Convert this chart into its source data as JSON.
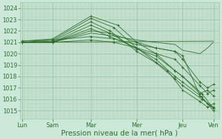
{
  "bg_color": "#cce8d8",
  "grid_color": "#a8c8b0",
  "line_color": "#2d6e2d",
  "marker_color": "#2d6e2d",
  "xlabel": "Pression niveau de la mer( hPa )",
  "xlabel_fontsize": 7.5,
  "tick_fontsize": 6.0,
  "yticks": [
    1015,
    1016,
    1017,
    1018,
    1019,
    1020,
    1021,
    1022,
    1023,
    1024
  ],
  "ylim": [
    1014.3,
    1024.5
  ],
  "xlim": [
    -0.05,
    5.15
  ],
  "xtick_labels": [
    "Lun",
    "Sam",
    "Mar",
    "Mer",
    "Jeu",
    "Ven"
  ],
  "xtick_positions": [
    0.0,
    0.8,
    1.8,
    3.0,
    4.2,
    5.0
  ],
  "vline_positions": [
    0.0,
    0.8,
    1.8,
    3.0,
    4.2,
    5.0
  ],
  "series": [
    {
      "x": [
        0.0,
        0.8,
        1.8,
        2.5,
        3.0,
        3.5,
        4.0,
        4.2,
        4.7,
        5.0
      ],
      "y": [
        1021.1,
        1021.3,
        1023.3,
        1022.5,
        1021.0,
        1020.0,
        1018.5,
        1018.0,
        1016.5,
        1015.2
      ],
      "marker": true
    },
    {
      "x": [
        0.0,
        0.8,
        1.8,
        2.4,
        3.0,
        3.5,
        4.0,
        4.2,
        4.7,
        5.0
      ],
      "y": [
        1021.0,
        1021.2,
        1023.1,
        1022.3,
        1020.5,
        1019.5,
        1018.0,
        1017.5,
        1016.2,
        1015.0
      ],
      "marker": true
    },
    {
      "x": [
        0.0,
        0.8,
        1.8,
        2.3,
        3.0,
        3.5,
        4.0,
        4.2,
        4.7,
        5.0
      ],
      "y": [
        1021.0,
        1021.1,
        1022.8,
        1022.0,
        1020.2,
        1019.2,
        1017.8,
        1017.2,
        1016.0,
        1015.3
      ],
      "marker": true
    },
    {
      "x": [
        0.0,
        0.8,
        1.8,
        2.3,
        3.0,
        3.5,
        4.0,
        4.2,
        4.65,
        4.85,
        5.0
      ],
      "y": [
        1021.0,
        1021.0,
        1022.5,
        1021.8,
        1020.4,
        1019.8,
        1018.5,
        1018.0,
        1016.5,
        1016.8,
        1016.3
      ],
      "marker": true
    },
    {
      "x": [
        0.0,
        0.8,
        1.8,
        2.3,
        3.0,
        3.5,
        4.0,
        4.2,
        4.65,
        4.85,
        5.0
      ],
      "y": [
        1021.0,
        1021.0,
        1022.2,
        1021.5,
        1020.5,
        1020.0,
        1019.5,
        1018.8,
        1017.2,
        1016.5,
        1016.8
      ],
      "marker": true
    },
    {
      "x": [
        0.0,
        0.8,
        1.8,
        2.3,
        3.0,
        3.5,
        4.0,
        4.2,
        4.65,
        4.85,
        5.0
      ],
      "y": [
        1021.0,
        1021.0,
        1022.0,
        1021.8,
        1021.0,
        1020.5,
        1020.2,
        1019.5,
        1017.5,
        1017.0,
        1017.3
      ],
      "marker": true
    },
    {
      "x": [
        0.0,
        0.8,
        1.8,
        2.3,
        3.0,
        3.5,
        4.0,
        4.2,
        4.65,
        4.85,
        5.0
      ],
      "y": [
        1021.0,
        1021.0,
        1021.8,
        1021.6,
        1021.2,
        1021.0,
        1020.8,
        1020.3,
        1020.0,
        1020.5,
        1021.0
      ],
      "marker": false
    },
    {
      "x": [
        0.0,
        5.0
      ],
      "y": [
        1021.0,
        1021.1
      ],
      "marker": false
    },
    {
      "x": [
        0.0,
        0.8,
        1.8,
        2.4,
        3.0,
        3.5,
        4.0,
        4.2,
        4.65,
        4.85,
        5.0
      ],
      "y": [
        1021.1,
        1021.2,
        1021.5,
        1021.3,
        1020.8,
        1020.5,
        1020.2,
        1019.8,
        1016.3,
        1015.6,
        1015.2
      ],
      "marker": true
    },
    {
      "x": [
        0.0,
        0.8,
        1.8,
        2.4,
        3.0,
        3.8,
        4.2,
        4.65,
        4.85,
        5.0
      ],
      "y": [
        1021.0,
        1021.0,
        1021.2,
        1021.0,
        1020.5,
        1018.5,
        1016.8,
        1015.8,
        1015.3,
        1015.6
      ],
      "marker": true
    }
  ],
  "num_minor_vlines": 50,
  "num_minor_hlines": 100
}
